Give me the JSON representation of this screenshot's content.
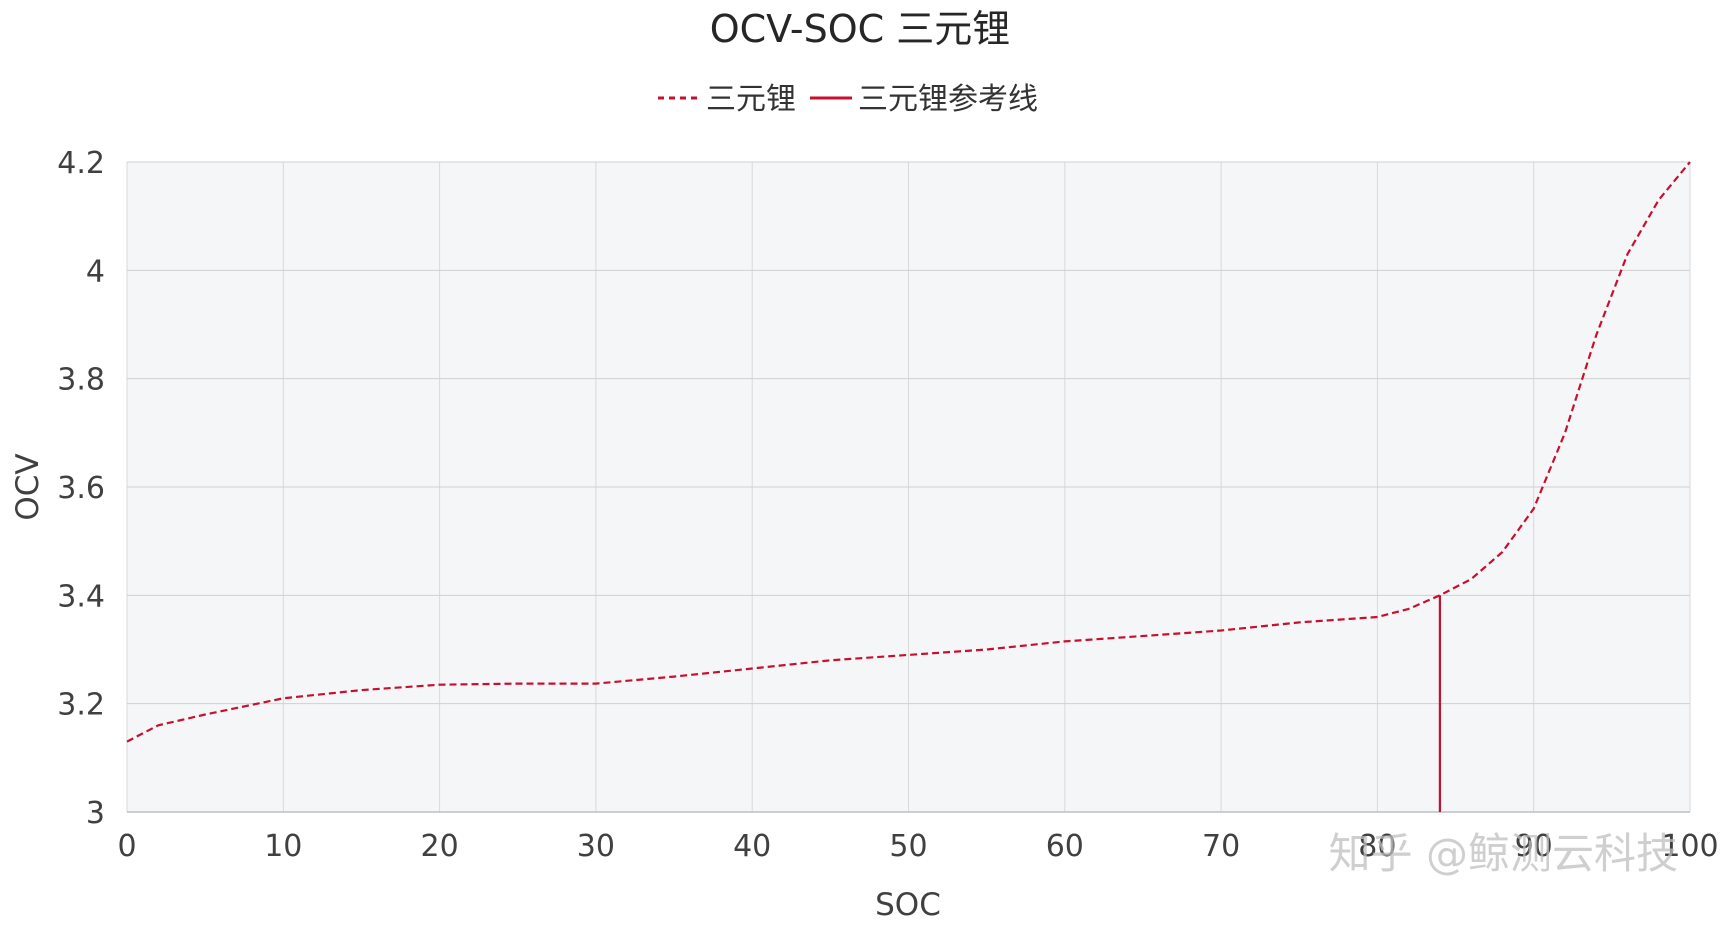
{
  "chart_data": {
    "type": "line",
    "title": "OCV-SOC 三元锂",
    "xlabel": "SOC",
    "ylabel": "OCV",
    "xlim": [
      0,
      100
    ],
    "ylim": [
      3,
      4.2
    ],
    "xticks": [
      "0",
      "10",
      "20",
      "30",
      "40",
      "50",
      "60",
      "70",
      "80",
      "90",
      "100"
    ],
    "yticks": [
      "3",
      "3.2",
      "3.4",
      "3.6",
      "3.8",
      "4",
      "4.2"
    ],
    "grid": true,
    "legend_position": "top",
    "series": [
      {
        "name": "三元锂",
        "style": "dashed",
        "color": "#c8102e",
        "x": [
          0,
          2,
          5,
          10,
          15,
          20,
          25,
          30,
          35,
          40,
          45,
          50,
          55,
          60,
          65,
          70,
          75,
          80,
          82,
          84,
          86,
          88,
          90,
          92,
          94,
          96,
          98,
          100
        ],
        "y": [
          3.13,
          3.16,
          3.18,
          3.21,
          3.225,
          3.235,
          3.237,
          3.237,
          3.25,
          3.265,
          3.28,
          3.29,
          3.3,
          3.315,
          3.325,
          3.335,
          3.35,
          3.36,
          3.375,
          3.4,
          3.43,
          3.48,
          3.56,
          3.7,
          3.88,
          4.03,
          4.13,
          4.2
        ]
      },
      {
        "name": "三元锂参考线",
        "style": "solid",
        "color": "#c8102e",
        "x": [
          84,
          84
        ],
        "y": [
          3.0,
          3.4
        ]
      }
    ]
  },
  "watermark": "知乎 @鲸测云科技"
}
